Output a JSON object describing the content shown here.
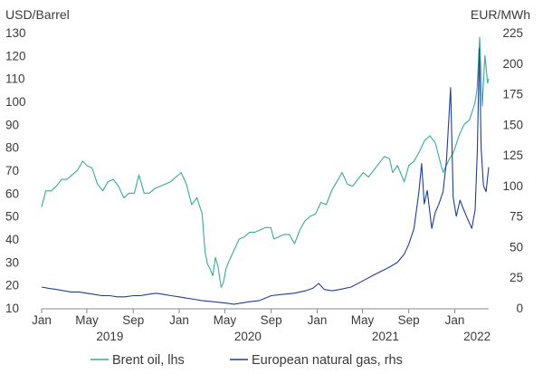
{
  "chart_data": {
    "type": "line",
    "title": "",
    "left_axis": {
      "unit": "USD/Barrel",
      "ylim": [
        10,
        130
      ],
      "ticks": [
        10,
        20,
        30,
        40,
        50,
        60,
        70,
        80,
        90,
        100,
        110,
        120,
        130
      ]
    },
    "right_axis": {
      "unit": "EUR/MWh",
      "ylim": [
        0,
        225
      ],
      "ticks": [
        0,
        25,
        50,
        75,
        100,
        125,
        150,
        175,
        200,
        225
      ]
    },
    "x_axis": {
      "range": [
        "2019-01-01",
        "2022-04-01"
      ],
      "month_ticks": [
        {
          "date": "2019-01-01",
          "label": "Jan"
        },
        {
          "date": "2019-05-01",
          "label": "May"
        },
        {
          "date": "2019-09-01",
          "label": "Sep"
        },
        {
          "date": "2020-01-01",
          "label": "Jan"
        },
        {
          "date": "2020-05-01",
          "label": "May"
        },
        {
          "date": "2020-09-01",
          "label": "Sep"
        },
        {
          "date": "2021-01-01",
          "label": "Jan"
        },
        {
          "date": "2021-05-01",
          "label": "May"
        },
        {
          "date": "2021-09-01",
          "label": "Sep"
        },
        {
          "date": "2022-01-01",
          "label": "Jan"
        }
      ],
      "year_labels": [
        {
          "date": "2019-07-01",
          "label": "2019"
        },
        {
          "date": "2020-07-01",
          "label": "2020"
        },
        {
          "date": "2021-07-01",
          "label": "2021"
        },
        {
          "date": "2022-03-01",
          "label": "2022"
        }
      ]
    },
    "grid": false,
    "legend_position": "bottom",
    "series": [
      {
        "name": "Brent oil, lhs",
        "axis": "left",
        "color": "#3aa99f",
        "points": [
          [
            "2019-01-01",
            54
          ],
          [
            "2019-01-12",
            61
          ],
          [
            "2019-01-26",
            61
          ],
          [
            "2019-02-09",
            63
          ],
          [
            "2019-02-23",
            66
          ],
          [
            "2019-03-09",
            66
          ],
          [
            "2019-03-23",
            68
          ],
          [
            "2019-04-06",
            70
          ],
          [
            "2019-04-20",
            74
          ],
          [
            "2019-05-01",
            72
          ],
          [
            "2019-05-15",
            71
          ],
          [
            "2019-05-29",
            64
          ],
          [
            "2019-06-12",
            61
          ],
          [
            "2019-06-26",
            65
          ],
          [
            "2019-07-10",
            66
          ],
          [
            "2019-07-24",
            63
          ],
          [
            "2019-08-07",
            58
          ],
          [
            "2019-08-21",
            60
          ],
          [
            "2019-09-04",
            60
          ],
          [
            "2019-09-16",
            68
          ],
          [
            "2019-09-30",
            60
          ],
          [
            "2019-10-14",
            60
          ],
          [
            "2019-10-28",
            62
          ],
          [
            "2019-11-11",
            63
          ],
          [
            "2019-11-25",
            64
          ],
          [
            "2019-12-09",
            65
          ],
          [
            "2019-12-23",
            67
          ],
          [
            "2020-01-06",
            69
          ],
          [
            "2020-01-20",
            64
          ],
          [
            "2020-02-03",
            55
          ],
          [
            "2020-02-17",
            58
          ],
          [
            "2020-03-02",
            51
          ],
          [
            "2020-03-09",
            35
          ],
          [
            "2020-03-16",
            29
          ],
          [
            "2020-03-23",
            27
          ],
          [
            "2020-03-30",
            24
          ],
          [
            "2020-04-06",
            32
          ],
          [
            "2020-04-13",
            28
          ],
          [
            "2020-04-21",
            19
          ],
          [
            "2020-04-27",
            21
          ],
          [
            "2020-05-04",
            27
          ],
          [
            "2020-05-11",
            30
          ],
          [
            "2020-05-25",
            35
          ],
          [
            "2020-06-08",
            40
          ],
          [
            "2020-06-22",
            41
          ],
          [
            "2020-07-06",
            43
          ],
          [
            "2020-07-20",
            43
          ],
          [
            "2020-08-03",
            44
          ],
          [
            "2020-08-17",
            45
          ],
          [
            "2020-08-31",
            45
          ],
          [
            "2020-09-08",
            40
          ],
          [
            "2020-09-21",
            41
          ],
          [
            "2020-10-05",
            42
          ],
          [
            "2020-10-19",
            42
          ],
          [
            "2020-11-02",
            38
          ],
          [
            "2020-11-16",
            44
          ],
          [
            "2020-11-30",
            48
          ],
          [
            "2020-12-14",
            50
          ],
          [
            "2020-12-28",
            51
          ],
          [
            "2021-01-11",
            56
          ],
          [
            "2021-01-25",
            55
          ],
          [
            "2021-02-08",
            61
          ],
          [
            "2021-02-22",
            65
          ],
          [
            "2021-03-08",
            69
          ],
          [
            "2021-03-22",
            64
          ],
          [
            "2021-04-05",
            63
          ],
          [
            "2021-04-19",
            66
          ],
          [
            "2021-05-03",
            69
          ],
          [
            "2021-05-17",
            67
          ],
          [
            "2021-05-31",
            70
          ],
          [
            "2021-06-14",
            73
          ],
          [
            "2021-06-28",
            76
          ],
          [
            "2021-07-12",
            75
          ],
          [
            "2021-07-20",
            69
          ],
          [
            "2021-08-02",
            72
          ],
          [
            "2021-08-20",
            65
          ],
          [
            "2021-09-01",
            72
          ],
          [
            "2021-09-15",
            74
          ],
          [
            "2021-09-29",
            78
          ],
          [
            "2021-10-13",
            83
          ],
          [
            "2021-10-27",
            85
          ],
          [
            "2021-11-10",
            82
          ],
          [
            "2021-11-26",
            72
          ],
          [
            "2021-12-01",
            69
          ],
          [
            "2021-12-15",
            74
          ],
          [
            "2021-12-29",
            78
          ],
          [
            "2022-01-12",
            85
          ],
          [
            "2022-01-26",
            90
          ],
          [
            "2022-02-09",
            92
          ],
          [
            "2022-02-23",
            99
          ],
          [
            "2022-03-01",
            105
          ],
          [
            "2022-03-08",
            128
          ],
          [
            "2022-03-15",
            98
          ],
          [
            "2022-03-22",
            120
          ],
          [
            "2022-03-29",
            108
          ],
          [
            "2022-04-01",
            110
          ]
        ]
      },
      {
        "name": "European natural gas, rhs",
        "axis": "right",
        "color": "#1f3f8f",
        "points": [
          [
            "2019-01-01",
            17
          ],
          [
            "2019-01-20",
            16
          ],
          [
            "2019-02-10",
            15
          ],
          [
            "2019-03-01",
            14
          ],
          [
            "2019-03-20",
            13
          ],
          [
            "2019-04-10",
            13
          ],
          [
            "2019-05-01",
            12
          ],
          [
            "2019-05-20",
            11
          ],
          [
            "2019-06-10",
            10
          ],
          [
            "2019-07-01",
            10
          ],
          [
            "2019-07-20",
            9
          ],
          [
            "2019-08-10",
            9
          ],
          [
            "2019-09-01",
            10
          ],
          [
            "2019-09-20",
            10
          ],
          [
            "2019-10-10",
            11
          ],
          [
            "2019-11-01",
            12
          ],
          [
            "2019-11-20",
            11
          ],
          [
            "2019-12-10",
            10
          ],
          [
            "2020-01-01",
            9
          ],
          [
            "2020-01-20",
            8
          ],
          [
            "2020-02-10",
            7
          ],
          [
            "2020-03-01",
            6
          ],
          [
            "2020-04-01",
            5
          ],
          [
            "2020-05-01",
            4
          ],
          [
            "2020-05-25",
            3
          ],
          [
            "2020-06-15",
            4
          ],
          [
            "2020-07-05",
            5
          ],
          [
            "2020-08-01",
            6
          ],
          [
            "2020-09-01",
            10
          ],
          [
            "2020-10-01",
            11
          ],
          [
            "2020-11-01",
            12
          ],
          [
            "2020-12-01",
            14
          ],
          [
            "2020-12-20",
            16
          ],
          [
            "2021-01-05",
            20
          ],
          [
            "2021-01-20",
            15
          ],
          [
            "2021-02-10",
            14
          ],
          [
            "2021-03-01",
            15
          ],
          [
            "2021-04-01",
            17
          ],
          [
            "2021-05-01",
            22
          ],
          [
            "2021-06-01",
            27
          ],
          [
            "2021-06-20",
            30
          ],
          [
            "2021-07-10",
            33
          ],
          [
            "2021-08-01",
            37
          ],
          [
            "2021-08-20",
            44
          ],
          [
            "2021-09-01",
            52
          ],
          [
            "2021-09-15",
            65
          ],
          [
            "2021-09-28",
            95
          ],
          [
            "2021-10-05",
            118
          ],
          [
            "2021-10-12",
            85
          ],
          [
            "2021-10-20",
            96
          ],
          [
            "2021-11-01",
            65
          ],
          [
            "2021-11-10",
            78
          ],
          [
            "2021-11-20",
            85
          ],
          [
            "2021-12-01",
            95
          ],
          [
            "2021-12-10",
            120
          ],
          [
            "2021-12-21",
            180
          ],
          [
            "2021-12-28",
            90
          ],
          [
            "2022-01-05",
            75
          ],
          [
            "2022-01-15",
            88
          ],
          [
            "2022-01-25",
            80
          ],
          [
            "2022-02-05",
            72
          ],
          [
            "2022-02-15",
            65
          ],
          [
            "2022-02-24",
            80
          ],
          [
            "2022-03-02",
            130
          ],
          [
            "2022-03-07",
            212
          ],
          [
            "2022-03-12",
            130
          ],
          [
            "2022-03-18",
            100
          ],
          [
            "2022-03-25",
            95
          ],
          [
            "2022-04-01",
            115
          ]
        ]
      }
    ]
  }
}
